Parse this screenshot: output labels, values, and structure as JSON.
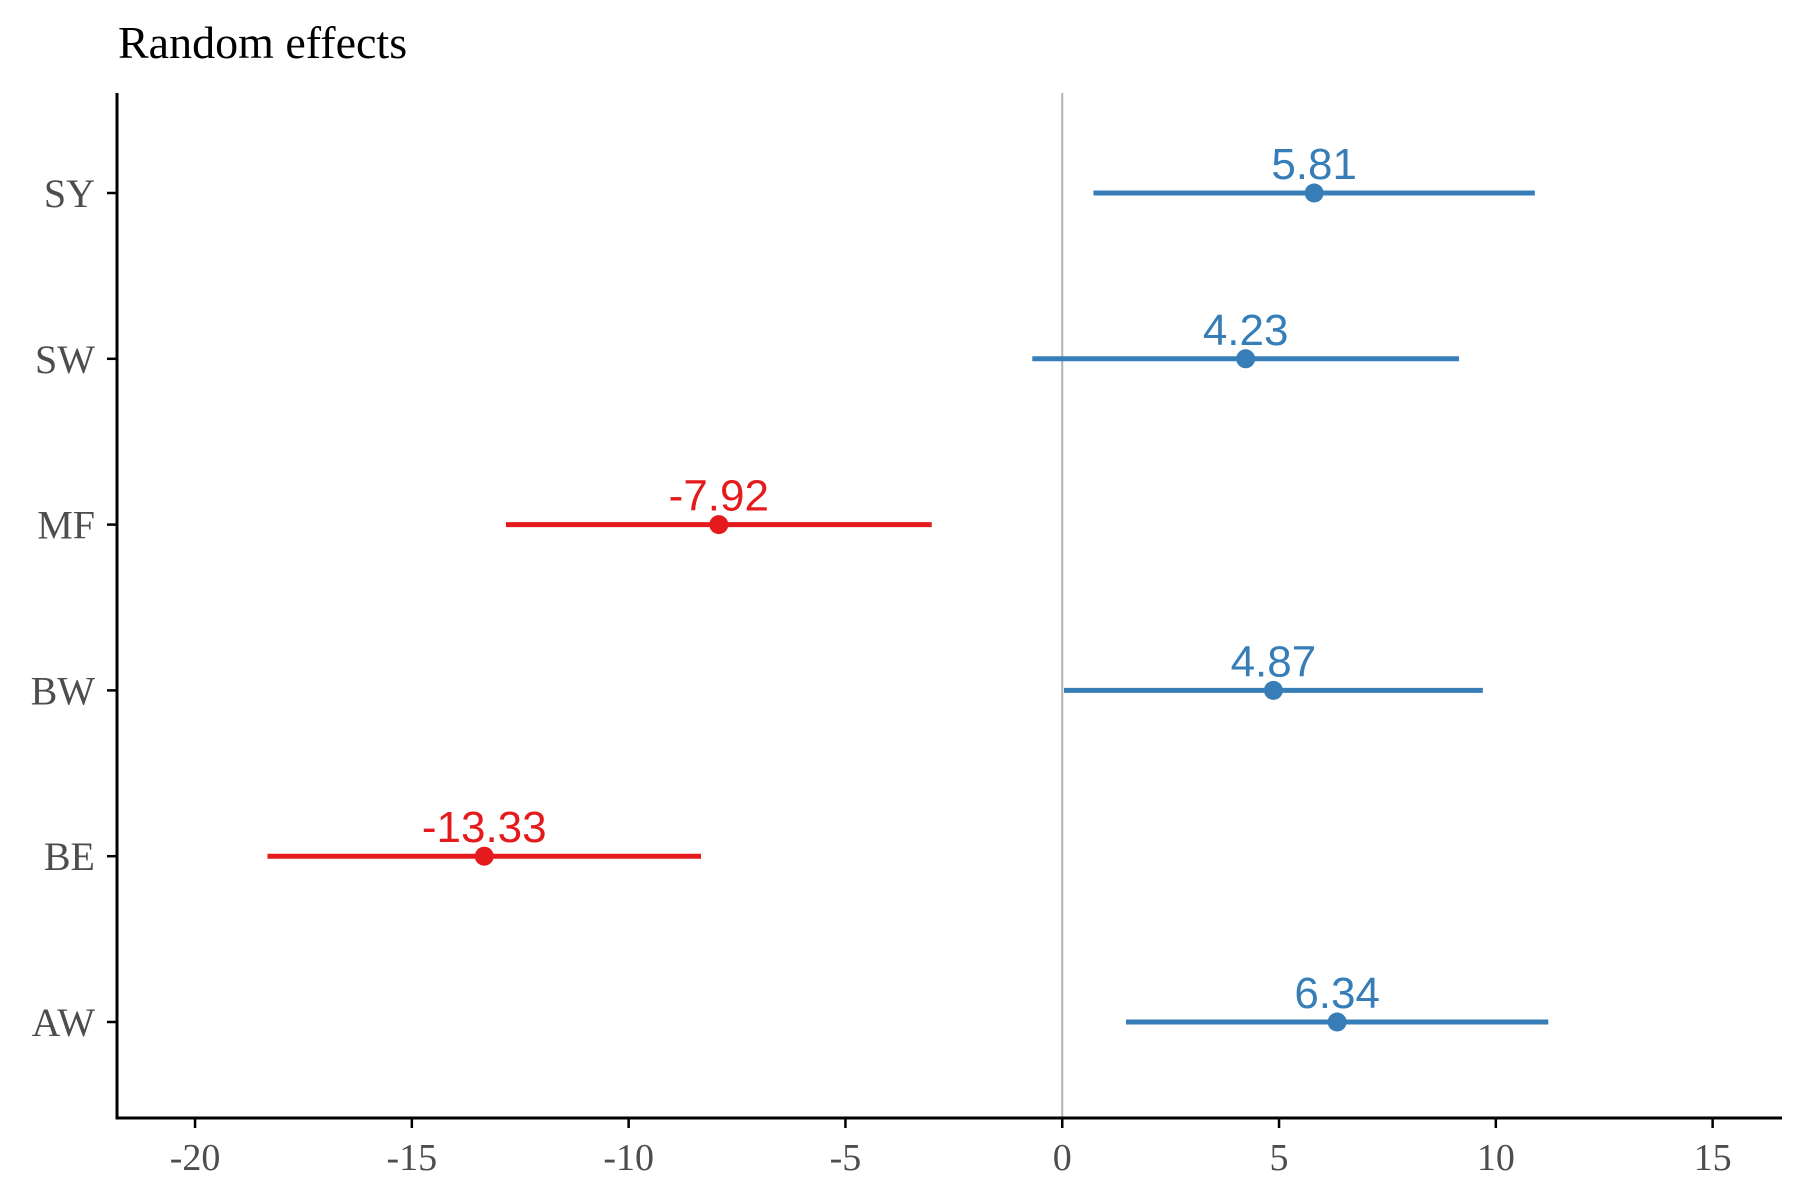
{
  "chart_data": {
    "type": "forest",
    "title": "Random effects",
    "xlabel": "",
    "ylabel": "",
    "xlim": [
      -21.8,
      16.6
    ],
    "x_ticks": [
      -20,
      -15,
      -10,
      -5,
      0,
      5,
      10,
      15
    ],
    "x_tick_labels": [
      "-20",
      "-15",
      "-10",
      "-5",
      "0",
      "5",
      "10",
      "15"
    ],
    "reference_line": 0,
    "grid": false,
    "colors": {
      "positive": "#377eb8",
      "negative": "#e41a1c",
      "reference_line": "#b3b3b3",
      "axis": "#000000"
    },
    "categories": [
      "AW",
      "BE",
      "BW",
      "MF",
      "SW",
      "SY"
    ],
    "estimates": [
      6.34,
      -13.33,
      4.87,
      -7.92,
      4.23,
      5.81
    ],
    "lower": [
      1.47,
      -18.33,
      0.04,
      -12.83,
      -0.69,
      0.72
    ],
    "upper": [
      11.21,
      -8.33,
      9.7,
      -3.01,
      9.15,
      10.9
    ],
    "labels": [
      "6.34",
      "-13.33",
      "4.87",
      "-7.92",
      "4.23",
      "5.81"
    ]
  }
}
